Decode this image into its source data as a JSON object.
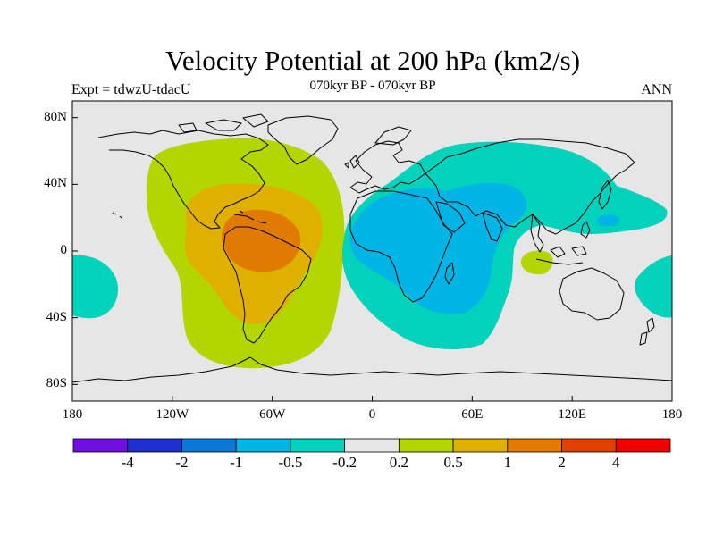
{
  "header": {
    "title": "Velocity Potential at 200 hPa (km2/s)",
    "subtitle": "070kyr BP - 070kyr BP",
    "left_label": "Expt = tdwzU-tdacU",
    "right_label": "ANN"
  },
  "map": {
    "projection": "cylindrical-equidistant",
    "lon_range": [
      -180,
      180
    ],
    "lat_range": [
      -90,
      90
    ],
    "x_ticks": [
      {
        "lon": -180,
        "label": "180"
      },
      {
        "lon": -120,
        "label": "120W"
      },
      {
        "lon": -60,
        "label": "60W"
      },
      {
        "lon": 0,
        "label": "0"
      },
      {
        "lon": 60,
        "label": "60E"
      },
      {
        "lon": 120,
        "label": "120E"
      },
      {
        "lon": 180,
        "label": "180"
      }
    ],
    "y_ticks": [
      {
        "lat": 80,
        "label": "80N"
      },
      {
        "lat": 40,
        "label": "40N"
      },
      {
        "lat": 0,
        "label": "0"
      },
      {
        "lat": -40,
        "label": "40S"
      },
      {
        "lat": -80,
        "label": "80S"
      }
    ],
    "background_color": "#e6e6e6",
    "coastline_color": "#000000"
  },
  "colorbar": {
    "colors": [
      "#7010e0",
      "#2030d0",
      "#0a78d6",
      "#00b4e6",
      "#00d2bc",
      "#e6e6e6",
      "#b4d600",
      "#e0b000",
      "#e07a00",
      "#e04000",
      "#f00000"
    ],
    "labels": [
      "-4",
      "-2",
      "-1",
      "-0.5",
      "-0.2",
      "0.2",
      "0.5",
      "1",
      "2",
      "4"
    ]
  }
}
